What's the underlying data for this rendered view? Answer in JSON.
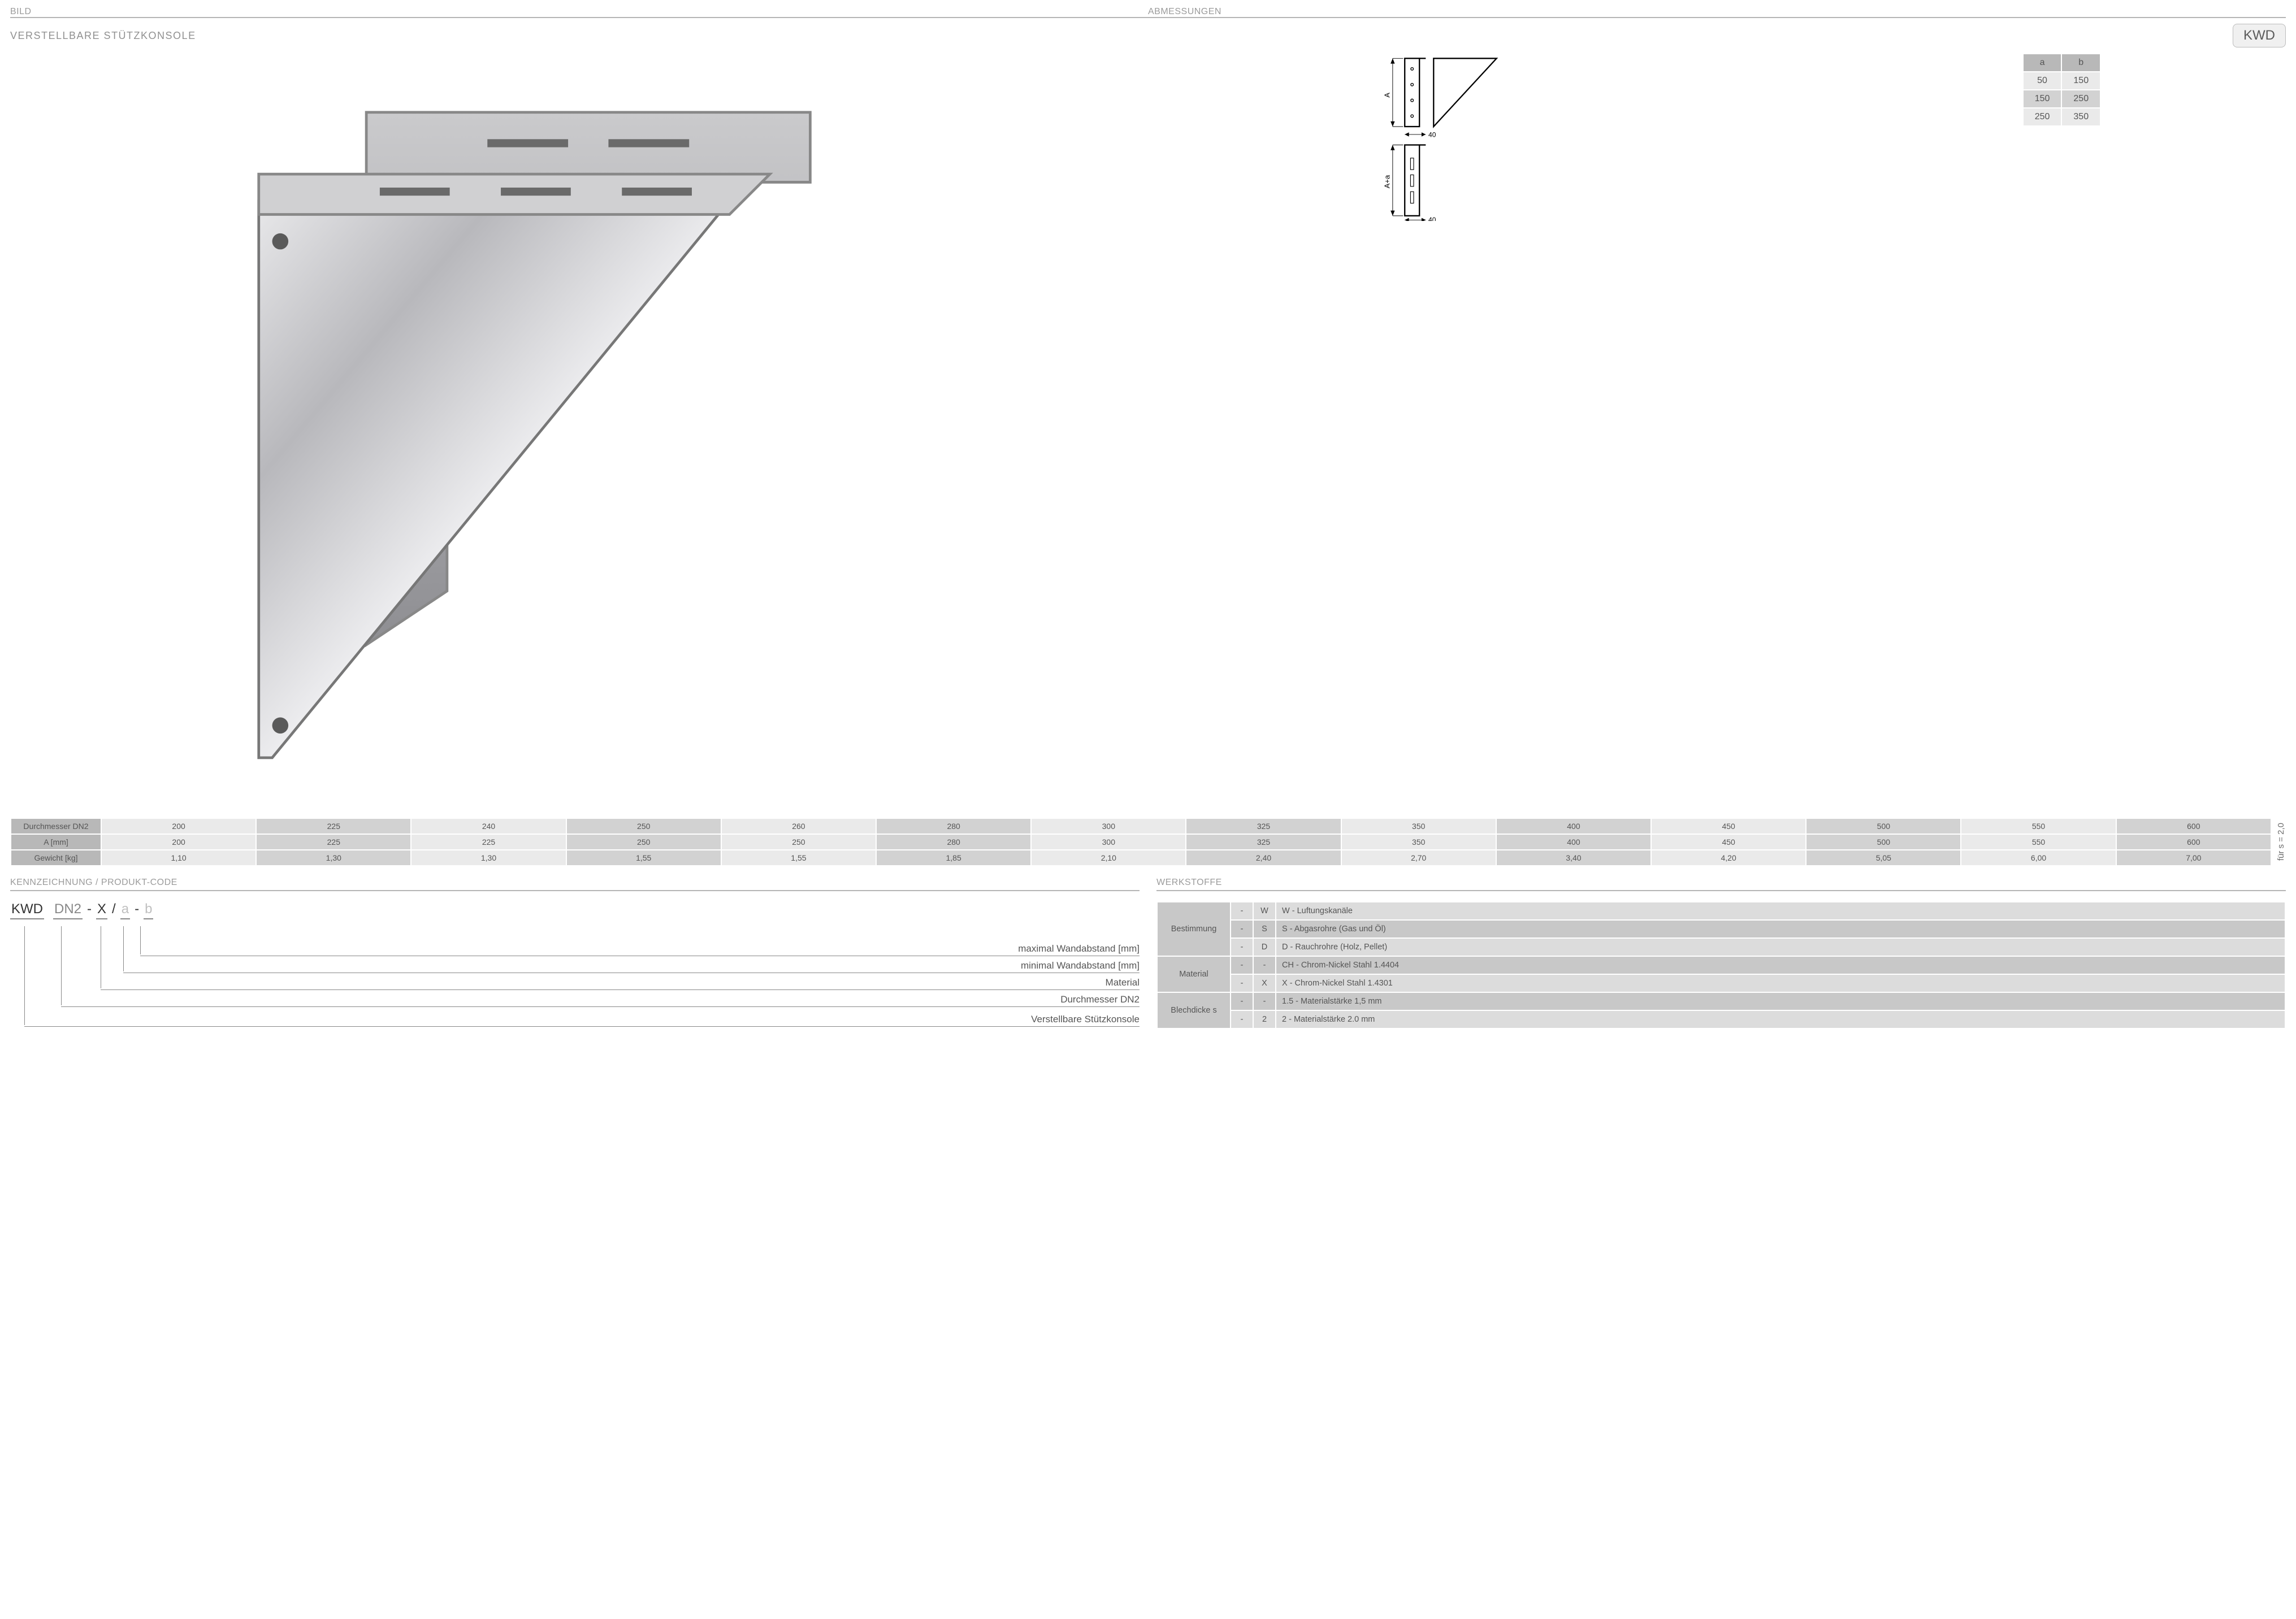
{
  "headers": {
    "bild": "BILD",
    "abmessungen": "ABMESSUNGEN",
    "subtitle": "VERSTELLBARE STÜTZKONSOLE",
    "code_badge": "KWD",
    "kenn": "KENNZEICHNUNG  / PRODUKT-CODE",
    "werkstoffe": "WERKSTOFFE"
  },
  "ab_table": {
    "headers": [
      "a",
      "b"
    ],
    "rows": [
      [
        "50",
        "150"
      ],
      [
        "150",
        "250"
      ],
      [
        "250",
        "350"
      ]
    ]
  },
  "spec_table": {
    "row_labels": [
      "Durchmesser DN2",
      "A [mm]",
      "Gewicht [kg]"
    ],
    "cols": [
      {
        "dn": "200",
        "a": "200",
        "g": "1,10",
        "shade": "a"
      },
      {
        "dn": "225",
        "a": "225",
        "g": "1,30",
        "shade": "b"
      },
      {
        "dn": "240",
        "a": "225",
        "g": "1,30",
        "shade": "a"
      },
      {
        "dn": "250",
        "a": "250",
        "g": "1,55",
        "shade": "b"
      },
      {
        "dn": "260",
        "a": "250",
        "g": "1,55",
        "shade": "a"
      },
      {
        "dn": "280",
        "a": "280",
        "g": "1,85",
        "shade": "b"
      },
      {
        "dn": "300",
        "a": "300",
        "g": "2,10",
        "shade": "a"
      },
      {
        "dn": "325",
        "a": "325",
        "g": "2,40",
        "shade": "b"
      },
      {
        "dn": "350",
        "a": "350",
        "g": "2,70",
        "shade": "a"
      },
      {
        "dn": "400",
        "a": "400",
        "g": "3,40",
        "shade": "b"
      },
      {
        "dn": "450",
        "a": "450",
        "g": "4,20",
        "shade": "a"
      },
      {
        "dn": "500",
        "a": "500",
        "g": "5,05",
        "shade": "b"
      },
      {
        "dn": "550",
        "a": "550",
        "g": "6,00",
        "shade": "a"
      },
      {
        "dn": "600",
        "a": "600",
        "g": "7,00",
        "shade": "b"
      }
    ],
    "side_note": "für s = 2,0"
  },
  "product_code": {
    "segments": [
      {
        "text": "KWD",
        "cls": "dark"
      },
      {
        "text": "DN2",
        "cls": "mid",
        "pre": " "
      },
      {
        "text": "X",
        "cls": "dark",
        "pre": " - "
      },
      {
        "text": "a",
        "cls": "light",
        "pre": " / "
      },
      {
        "text": "b",
        "cls": "light",
        "pre": " - "
      }
    ],
    "legend": [
      "maximal Wandabstand [mm]",
      "minimal Wandabstand [mm]",
      "Material",
      "Durchmesser DN2",
      "Verstellbare Stützkonsole"
    ]
  },
  "materials": {
    "groups": [
      {
        "label": "Bestimmung",
        "rows": [
          {
            "c1": "-",
            "c2": "W",
            "desc": "W - Luftungskanäle"
          },
          {
            "c1": "-",
            "c2": "S",
            "desc": "S - Abgasrohre (Gas und Öl)"
          },
          {
            "c1": "-",
            "c2": "D",
            "desc": "D - Rauchrohre (Holz, Pellet)"
          }
        ]
      },
      {
        "label": "Material",
        "rows": [
          {
            "c1": "-",
            "c2": "-",
            "desc": "CH - Chrom-Nickel Stahl 1.4404"
          },
          {
            "c1": "-",
            "c2": "X",
            "desc": "X - Chrom-Nickel Stahl 1.4301"
          }
        ]
      },
      {
        "label": "Blechdicke s",
        "rows": [
          {
            "c1": "-",
            "c2": "-",
            "desc": "1.5 - Materialstärke 1,5 mm"
          },
          {
            "c1": "-",
            "c2": "2",
            "desc": "2 - Materialstärke 2.0 mm"
          }
        ]
      }
    ]
  },
  "drawing": {
    "dim_A": "A",
    "dim_Aa": "A+a",
    "dim_40": "40"
  },
  "colors": {
    "text_gray": "#555555",
    "header_gray": "#9b9b9b",
    "border_gray": "#b5b5b5",
    "cell_light": "#eaeaea",
    "cell_mid": "#d2d2d2",
    "cell_dark": "#b8b8b8",
    "badge_bg": "#f0f0f0"
  }
}
